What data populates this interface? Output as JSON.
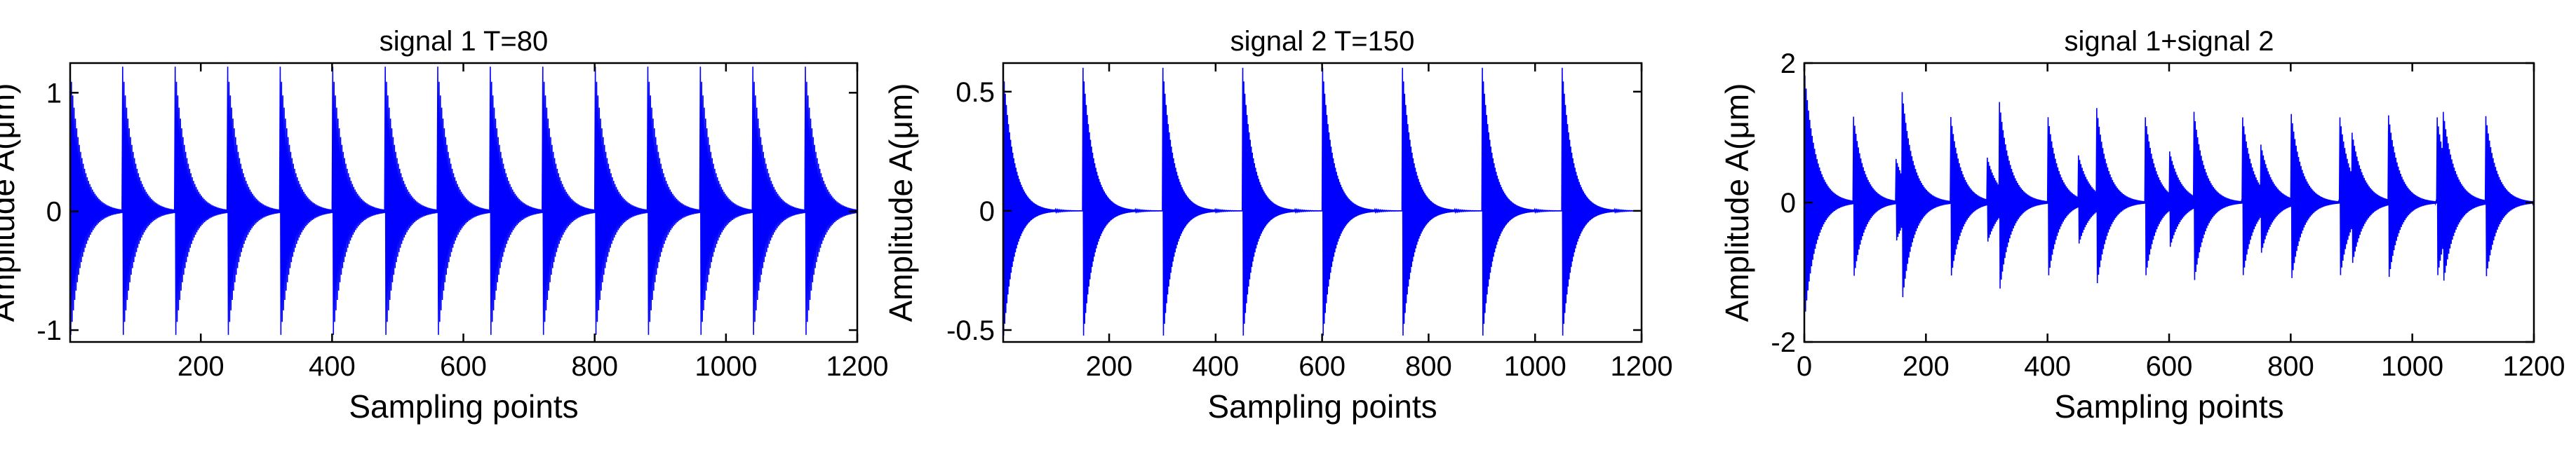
{
  "chart_data": [
    {
      "type": "line",
      "title": "signal 1  T=80",
      "xlabel": "Sampling points",
      "ylabel": "Amplitude A(μm)",
      "xlim": [
        1,
        1200
      ],
      "ylim": [
        -1.1,
        1.25
      ],
      "xticks": [
        200,
        400,
        600,
        800,
        1000,
        1200
      ],
      "xtick_labels": [
        "200",
        "400",
        "600",
        "800",
        "1000",
        "1200"
      ],
      "yticks": [
        -1,
        0,
        1
      ],
      "ytick_labels": [
        "-1",
        "0",
        "1"
      ],
      "color": "#0000ff",
      "series": [
        {
          "name": "signal 1",
          "period": 80,
          "start": 1,
          "peak_amplitude": 1.22,
          "trough_amplitude": -1.1,
          "decay_samples": 18
        }
      ]
    },
    {
      "type": "line",
      "title": "signal 2 T=150",
      "xlabel": "Sampling points",
      "ylabel": "Amplitude A(μm)",
      "xlim": [
        1,
        1200
      ],
      "ylim": [
        -0.55,
        0.62
      ],
      "xticks": [
        200,
        400,
        600,
        800,
        1000,
        1200
      ],
      "xtick_labels": [
        "200",
        "400",
        "600",
        "800",
        "1000",
        "1200"
      ],
      "yticks": [
        -0.5,
        0,
        0.5
      ],
      "ytick_labels": [
        "-0.5",
        "0",
        "0.5"
      ],
      "color": "#0000ff",
      "series": [
        {
          "name": "signal 2",
          "period": 150,
          "start": 1,
          "peak_amplitude": 0.6,
          "trough_amplitude": -0.55,
          "decay_samples": 20
        }
      ]
    },
    {
      "type": "line",
      "title": "signal 1+signal 2",
      "xlabel": "Sampling points",
      "ylabel": "Amplitude A(μm)",
      "xlim": [
        0,
        1200
      ],
      "ylim": [
        -2,
        2
      ],
      "xticks": [
        0,
        200,
        400,
        600,
        800,
        1000,
        1200
      ],
      "xtick_labels": [
        "0",
        "200",
        "400",
        "600",
        "800",
        "1000",
        "1200"
      ],
      "yticks": [
        -2,
        0,
        2
      ],
      "ytick_labels": [
        "-2",
        "0",
        "2"
      ],
      "color": "#0000ff",
      "series": [
        {
          "name": "signal 1+signal 2",
          "components": [
            "signal 1",
            "signal 2"
          ]
        }
      ]
    }
  ]
}
